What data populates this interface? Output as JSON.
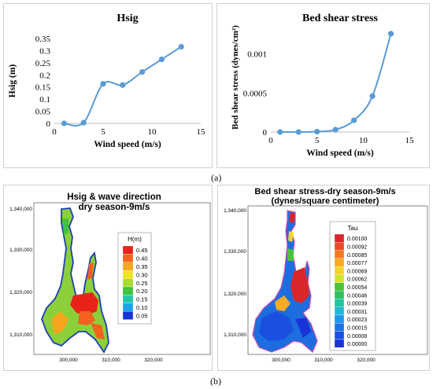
{
  "labels": {
    "a": "(a)",
    "b": "(b)"
  },
  "chart_data": [
    {
      "type": "line",
      "title": "Hsig",
      "xlabel": "Wind speed (m/s)",
      "ylabel": "Hsig (m)",
      "x": [
        1,
        3,
        5,
        7,
        9,
        11,
        13
      ],
      "y": [
        0,
        0.003,
        0.163,
        0.158,
        0.212,
        0.264,
        0.316
      ],
      "xlim": [
        0,
        15
      ],
      "ylim": [
        0,
        0.35
      ],
      "xticks": [
        0,
        5,
        10,
        15
      ],
      "yticks": [
        0,
        0.05,
        0.1,
        0.15,
        0.2,
        0.25,
        0.3,
        0.35
      ],
      "ytick_labels": [
        "0",
        "0.05",
        "0.1",
        "0.15",
        "0.2",
        "0.25",
        "0.3",
        "0.35"
      ],
      "color": "#5b9bd5",
      "grid": false
    },
    {
      "type": "line",
      "title": "Bed shear stress",
      "xlabel": "Wind speed (m/s)",
      "ylabel": "Bed shear stress (dynes/cm²)",
      "x": [
        1,
        3,
        5,
        7,
        9,
        11,
        13
      ],
      "y": [
        0,
        0,
        5e-06,
        3e-05,
        0.00015,
        0.00046,
        0.00126
      ],
      "xlim": [
        0,
        15
      ],
      "ylim": [
        0,
        0.0014
      ],
      "xticks": [
        0,
        5,
        10,
        15
      ],
      "yticks": [
        0,
        0.0005,
        0.001
      ],
      "ytick_labels": [
        "0",
        "0.0005",
        "0.001"
      ],
      "color": "#5b9bd5",
      "grid": false
    },
    {
      "type": "heatmap",
      "title": "Hsig & wave direction",
      "subtitle": "dry season-9m/s",
      "legend_title": "H(m)",
      "legend_values": [
        "0.45",
        "0.40",
        "0.35",
        "0.30",
        "0.25",
        "0.20",
        "0.15",
        "0.10",
        "0.05"
      ],
      "legend_colors": [
        "#e8241a",
        "#f2611d",
        "#f6a51f",
        "#f2e128",
        "#a8dc30",
        "#3fc23c",
        "#22c7a8",
        "#1aa3e8",
        "#1733d6"
      ],
      "xtick_labels": [
        "300,000",
        "310,000",
        "320,000"
      ],
      "ytick_labels": [
        "1,340,000",
        "1,330,000",
        "1,320,000",
        "1,310,000"
      ]
    },
    {
      "type": "heatmap",
      "title": "Bed shear stress-dry season-9m/s",
      "subtitle": "(dynes/square centimeter)",
      "legend_title": "Tau",
      "legend_values": [
        "0.00100",
        "0.00092",
        "0.00085",
        "0.00077",
        "0.00069",
        "0.00062",
        "0.00054",
        "0.00046",
        "0.00039",
        "0.00031",
        "0.00023",
        "0.00015",
        "0.00008",
        "0.00000"
      ],
      "legend_colors": [
        "#d9262a",
        "#ec4b25",
        "#f57b22",
        "#f8ab23",
        "#f4d42a",
        "#d3e22f",
        "#4cc13c",
        "#2fbf5e",
        "#22c4a4",
        "#22b9d8",
        "#1d97e6",
        "#1c72e2",
        "#1a4fe0",
        "#1a33d8"
      ],
      "xtick_labels": [
        "300,000",
        "310,000",
        "320,000"
      ],
      "ytick_labels": [
        "1,340,000",
        "1,330,000",
        "1,320,000",
        "1,310,000"
      ]
    }
  ]
}
